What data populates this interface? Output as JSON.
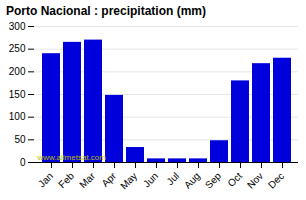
{
  "chart_data": {
    "type": "bar",
    "title": "Porto Nacional : precipitation (mm)",
    "categories": [
      "Jan",
      "Feb",
      "Mar",
      "Apr",
      "May",
      "Jun",
      "Jul",
      "Aug",
      "Sep",
      "Oct",
      "Nov",
      "Dec"
    ],
    "values": [
      240,
      265,
      270,
      148,
      33,
      8,
      8,
      8,
      48,
      180,
      218,
      230
    ],
    "color": "#0000dd",
    "ylim": [
      0,
      300
    ],
    "yticks": [
      0,
      50,
      100,
      150,
      200,
      250,
      300
    ],
    "grid": true,
    "annotation": "www.allmetsat.com"
  }
}
